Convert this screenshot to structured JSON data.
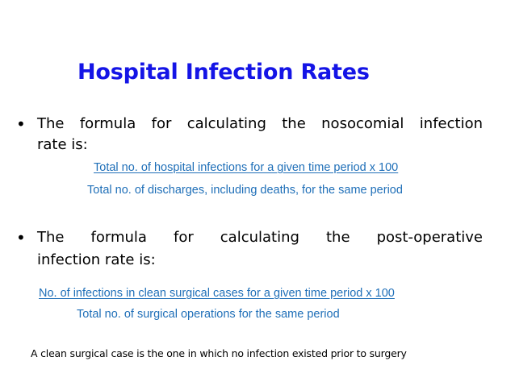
{
  "title": "Hospital Infection Rates",
  "bullets": [
    {
      "marker": "•",
      "line1": "The formula for calculating the nosocomial infection",
      "line2": "rate is:",
      "numerator": "Total no. of hospital infections for a given time period  x 100",
      "denominator": "Total no. of discharges, including deaths, for the same period"
    },
    {
      "marker": "•",
      "line1": "The formula for calculating the post-operative",
      "line2": "infection rate is:",
      "numerator": "No. of infections in clean surgical cases for a given time period  x 100",
      "denominator": "Total no. of surgical operations for the same period"
    }
  ],
  "note": "A clean surgical case is the one in which no infection existed prior to surgery",
  "colors": {
    "title": "#1414e6",
    "formula": "#1f6fb8",
    "text": "#000000",
    "background": "#ffffff"
  }
}
